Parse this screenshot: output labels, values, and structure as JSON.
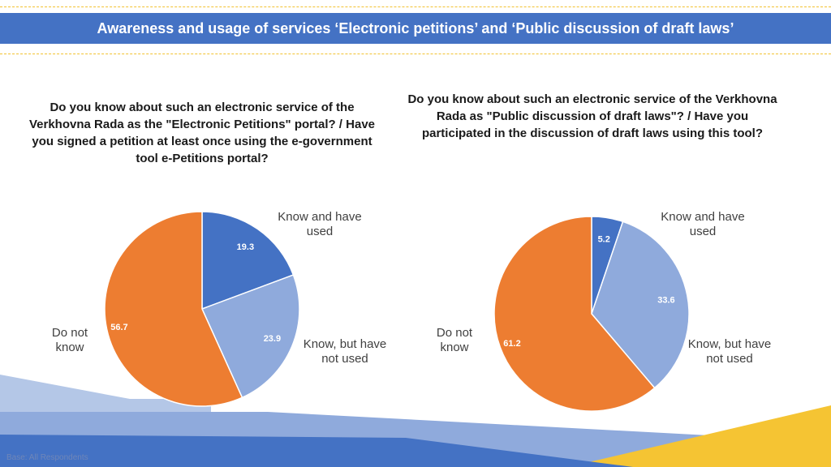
{
  "header": {
    "title": "Awareness and usage of services ‘Electronic petitions’ and ‘Public discussion of draft laws’"
  },
  "colors": {
    "banner": "#4472c4",
    "know_and_used": "#4472c4",
    "know_not_used": "#8faadc",
    "do_not_know": "#ed7d31",
    "accent_dash": "#f2c230"
  },
  "footer": {
    "text": "Base: All Respondents"
  },
  "chart_data": [
    {
      "type": "pie",
      "title": "Do you know about such an electronic service of the Verkhovna Rada as the \"Electronic Petitions\" portal? / Have you signed a petition at least once using the e-government tool e-Petitions portal?",
      "slices": [
        {
          "label": "Know and have used",
          "value": 19.3,
          "value_text": "19.3",
          "color": "#4472c4"
        },
        {
          "label": "Know, but have not used",
          "value": 23.9,
          "value_text": "23.9",
          "color": "#8faadc"
        },
        {
          "label": "Do not know",
          "value": 56.7,
          "value_text": "56.7",
          "color": "#ed7d31"
        }
      ]
    },
    {
      "type": "pie",
      "title": "Do you know about such an electronic service of the Verkhovna Rada as \"Public discussion of draft laws\"? / Have you participated in the discussion of draft laws using this tool?",
      "slices": [
        {
          "label": "Know and have used",
          "value": 5.2,
          "value_text": "5.2",
          "color": "#4472c4"
        },
        {
          "label": "Know, but have not used",
          "value": 33.6,
          "value_text": "33.6",
          "color": "#8faadc"
        },
        {
          "label": "Do not know",
          "value": 61.2,
          "value_text": "61.2",
          "color": "#ed7d31"
        }
      ]
    }
  ]
}
